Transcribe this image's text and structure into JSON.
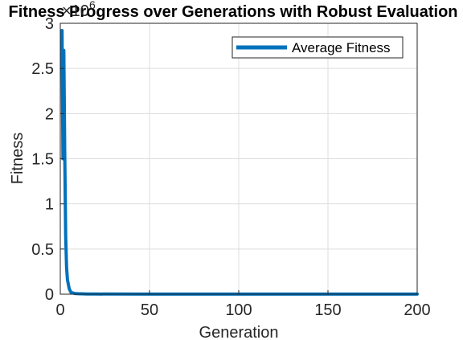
{
  "chart_data": {
    "type": "line",
    "title": "Fitness Progress over Generations with Robust Evaluation",
    "xlabel": "Generation",
    "ylabel": "Fitness",
    "y_multiplier_base": "×10",
    "y_multiplier_exp": "6",
    "xlim": [
      0,
      200
    ],
    "ylim": [
      0,
      3
    ],
    "x_ticks": [
      0,
      50,
      100,
      150,
      200
    ],
    "x_tick_labels": [
      "0",
      "50",
      "100",
      "150",
      "200"
    ],
    "y_ticks": [
      0,
      0.5,
      1,
      1.5,
      2,
      2.5,
      3
    ],
    "y_tick_labels": [
      "0",
      "0.5",
      "1",
      "1.5",
      "2",
      "2.5",
      "3"
    ],
    "grid": true,
    "legend_position": "top-right",
    "series": [
      {
        "name": "Average Fitness",
        "color": "#0072BD",
        "x": [
          1,
          1.5,
          2,
          2.5,
          3,
          3.5,
          4,
          5,
          6,
          8,
          10,
          15,
          20,
          50,
          100,
          150,
          200
        ],
        "y": [
          2.92,
          1.5,
          2.7,
          1.6,
          0.65,
          0.3,
          0.16,
          0.06,
          0.02,
          0.008,
          0.005,
          0.003,
          0.002,
          0.001,
          0.001,
          0.001,
          0.001
        ]
      }
    ]
  }
}
